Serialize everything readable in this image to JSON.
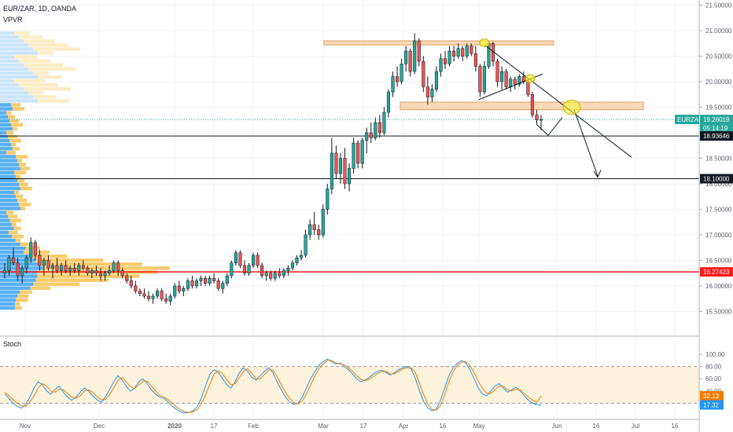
{
  "header": {
    "symbol_line": "EUR/ZAR, 1D, OANDA",
    "indicator_label": "VPVR",
    "stoch_label": "Stoch"
  },
  "colors": {
    "up": "#26a69a",
    "down": "#ef5350",
    "upBright": "#2196f3",
    "vpUp": "#2196f3",
    "vpDown": "#f6b93b",
    "vpUpLight": "#bbdefb",
    "vpDownLight": "#fde9b8",
    "zone": "#f9d9b8",
    "zoneStroke": "#e0a060",
    "support": "#131722",
    "redLine": "#ff1a1a",
    "stochK": "#2196f3",
    "stochD": "#f57c00",
    "stochBand": "#fdf3dc",
    "circleFill": "#f4f43c",
    "currentTag": "#26a69a"
  },
  "chart_data": [
    {
      "type": "candlestick",
      "title": "EUR/ZAR, 1D, OANDA",
      "y_ticks": [
        "21.50000",
        "21.00000",
        "20.50000",
        "20.00000",
        "19.50000",
        "19.00000",
        "18.50000",
        "18.00000",
        "17.50000",
        "17.00000",
        "16.50000",
        "16.00000",
        "15.50000"
      ],
      "ylim": [
        15.25,
        21.75
      ],
      "x_ticks": [
        "Nov",
        "Dec",
        "2020",
        "17",
        "Feb",
        "Mar",
        "17",
        "Apr",
        "16",
        "May",
        "Jun",
        "16",
        "Jul",
        "16"
      ],
      "price_labels": [
        {
          "label": "EURZAR",
          "value": "19.26019"
        },
        {
          "label": "",
          "value": "05:14:19"
        },
        {
          "label": "",
          "value": "18.93646"
        },
        {
          "label": "",
          "value": "18.10000"
        },
        {
          "label": "",
          "value": "16.27423"
        }
      ],
      "levels": [
        18.93646,
        18.1,
        16.27423
      ],
      "last_price": 19.26019,
      "supply_zone": [
        20.72,
        20.8
      ],
      "demand_zone": [
        19.45,
        19.6
      ],
      "candles": [
        [
          16.25,
          16.45,
          16.15,
          16.3
        ],
        [
          16.3,
          16.6,
          16.2,
          16.55
        ],
        [
          16.55,
          16.75,
          16.4,
          16.45
        ],
        [
          16.45,
          16.55,
          16.1,
          16.2
        ],
        [
          16.2,
          16.4,
          16.05,
          16.35
        ],
        [
          16.35,
          16.6,
          16.25,
          16.55
        ],
        [
          16.55,
          16.95,
          16.45,
          16.85
        ],
        [
          16.85,
          16.9,
          16.5,
          16.6
        ],
        [
          16.6,
          16.7,
          16.3,
          16.4
        ],
        [
          16.4,
          16.55,
          16.2,
          16.5
        ],
        [
          16.5,
          16.6,
          16.3,
          16.35
        ],
        [
          16.35,
          16.45,
          16.15,
          16.4
        ],
        [
          16.4,
          16.55,
          16.25,
          16.3
        ],
        [
          16.3,
          16.45,
          16.2,
          16.4
        ],
        [
          16.4,
          16.5,
          16.25,
          16.3
        ],
        [
          16.3,
          16.4,
          16.2,
          16.35
        ],
        [
          16.35,
          16.45,
          16.25,
          16.3
        ],
        [
          16.3,
          16.45,
          16.2,
          16.4
        ],
        [
          16.4,
          16.5,
          16.3,
          16.35
        ],
        [
          16.35,
          16.4,
          16.2,
          16.25
        ],
        [
          16.25,
          16.35,
          16.15,
          16.3
        ],
        [
          16.3,
          16.4,
          16.2,
          16.25
        ],
        [
          16.25,
          16.35,
          16.1,
          16.2
        ],
        [
          16.2,
          16.3,
          16.1,
          16.25
        ],
        [
          16.25,
          16.4,
          16.2,
          16.3
        ],
        [
          16.3,
          16.5,
          16.25,
          16.45
        ],
        [
          16.45,
          16.5,
          16.2,
          16.3
        ],
        [
          16.3,
          16.35,
          16.15,
          16.2
        ],
        [
          16.2,
          16.25,
          16.05,
          16.1
        ],
        [
          16.1,
          16.2,
          15.95,
          16.0
        ],
        [
          16.0,
          16.1,
          15.85,
          15.9
        ],
        [
          15.9,
          15.95,
          15.8,
          15.85
        ],
        [
          15.85,
          15.95,
          15.75,
          15.8
        ],
        [
          15.8,
          15.9,
          15.7,
          15.75
        ],
        [
          15.75,
          15.85,
          15.65,
          15.8
        ],
        [
          15.8,
          15.95,
          15.75,
          15.9
        ],
        [
          15.9,
          15.95,
          15.7,
          15.75
        ],
        [
          15.75,
          15.85,
          15.65,
          15.7
        ],
        [
          15.7,
          15.85,
          15.62,
          15.8
        ],
        [
          15.8,
          16.05,
          15.75,
          16.0
        ],
        [
          16.0,
          16.1,
          15.85,
          15.9
        ],
        [
          15.9,
          16.0,
          15.8,
          15.95
        ],
        [
          15.95,
          16.15,
          15.9,
          16.1
        ],
        [
          16.1,
          16.2,
          15.95,
          16.0
        ],
        [
          16.0,
          16.15,
          15.95,
          16.1
        ],
        [
          16.1,
          16.2,
          16.0,
          16.15
        ],
        [
          16.15,
          16.2,
          16.0,
          16.05
        ],
        [
          16.05,
          16.2,
          16.0,
          16.15
        ],
        [
          16.15,
          16.25,
          16.05,
          16.1
        ],
        [
          16.1,
          16.15,
          15.9,
          15.95
        ],
        [
          15.95,
          16.1,
          15.85,
          16.05
        ],
        [
          16.05,
          16.25,
          16.0,
          16.2
        ],
        [
          16.2,
          16.5,
          16.15,
          16.45
        ],
        [
          16.45,
          16.7,
          16.4,
          16.65
        ],
        [
          16.65,
          16.7,
          16.35,
          16.4
        ],
        [
          16.4,
          16.5,
          16.2,
          16.25
        ],
        [
          16.25,
          16.45,
          16.2,
          16.4
        ],
        [
          16.4,
          16.65,
          16.35,
          16.6
        ],
        [
          16.6,
          16.65,
          16.35,
          16.4
        ],
        [
          16.4,
          16.45,
          16.15,
          16.2
        ],
        [
          16.2,
          16.3,
          16.1,
          16.25
        ],
        [
          16.25,
          16.3,
          16.1,
          16.15
        ],
        [
          16.15,
          16.3,
          16.1,
          16.25
        ],
        [
          16.25,
          16.35,
          16.15,
          16.2
        ],
        [
          16.2,
          16.35,
          16.15,
          16.3
        ],
        [
          16.3,
          16.4,
          16.2,
          16.35
        ],
        [
          16.35,
          16.5,
          16.3,
          16.45
        ],
        [
          16.45,
          16.6,
          16.4,
          16.55
        ],
        [
          16.55,
          16.7,
          16.5,
          16.6
        ],
        [
          16.6,
          17.1,
          16.55,
          17.0
        ],
        [
          17.0,
          17.3,
          16.9,
          17.2
        ],
        [
          17.2,
          17.45,
          17.0,
          17.1
        ],
        [
          17.1,
          17.2,
          16.9,
          17.0
        ],
        [
          17.0,
          17.6,
          16.95,
          17.5
        ],
        [
          17.5,
          18.0,
          17.4,
          17.9
        ],
        [
          17.9,
          18.9,
          17.8,
          18.6
        ],
        [
          18.6,
          18.75,
          18.1,
          18.2
        ],
        [
          18.2,
          18.6,
          18.0,
          18.5
        ],
        [
          18.5,
          18.7,
          17.9,
          18.0
        ],
        [
          18.0,
          18.4,
          17.85,
          18.3
        ],
        [
          18.3,
          18.9,
          18.2,
          18.8
        ],
        [
          18.8,
          18.85,
          18.3,
          18.4
        ],
        [
          18.4,
          18.9,
          18.3,
          18.85
        ],
        [
          18.85,
          19.1,
          18.6,
          19.0
        ],
        [
          19.0,
          19.2,
          18.8,
          18.9
        ],
        [
          18.9,
          19.3,
          18.85,
          19.2
        ],
        [
          19.2,
          19.35,
          18.9,
          19.0
        ],
        [
          19.0,
          19.5,
          18.95,
          19.4
        ],
        [
          19.4,
          19.85,
          19.3,
          19.8
        ],
        [
          19.8,
          20.2,
          19.7,
          20.1
        ],
        [
          20.1,
          20.3,
          19.9,
          20.0
        ],
        [
          20.0,
          20.45,
          19.95,
          20.35
        ],
        [
          20.35,
          20.7,
          20.2,
          20.6
        ],
        [
          20.6,
          20.65,
          20.1,
          20.2
        ],
        [
          20.2,
          20.95,
          20.15,
          20.8
        ],
        [
          20.8,
          20.85,
          20.3,
          20.4
        ],
        [
          20.4,
          20.5,
          19.8,
          19.9
        ],
        [
          19.9,
          20.1,
          19.55,
          19.7
        ],
        [
          19.7,
          19.95,
          19.6,
          19.85
        ],
        [
          19.85,
          20.3,
          19.8,
          20.2
        ],
        [
          20.2,
          20.55,
          20.1,
          20.45
        ],
        [
          20.45,
          20.6,
          20.25,
          20.35
        ],
        [
          20.35,
          20.7,
          20.3,
          20.6
        ],
        [
          20.6,
          20.7,
          20.4,
          20.5
        ],
        [
          20.5,
          20.75,
          20.45,
          20.65
        ],
        [
          20.65,
          20.7,
          20.4,
          20.5
        ],
        [
          20.5,
          20.75,
          20.45,
          20.7
        ],
        [
          20.7,
          20.75,
          20.5,
          20.55
        ],
        [
          20.55,
          20.7,
          20.2,
          20.3
        ],
        [
          20.3,
          20.35,
          19.7,
          19.8
        ],
        [
          19.8,
          20.4,
          19.75,
          20.3
        ],
        [
          20.3,
          20.8,
          20.25,
          20.75
        ],
        [
          20.75,
          20.78,
          20.3,
          20.4
        ],
        [
          20.4,
          20.45,
          19.9,
          20.0
        ],
        [
          20.0,
          20.3,
          19.85,
          20.2
        ],
        [
          20.2,
          20.25,
          19.85,
          19.9
        ],
        [
          19.9,
          20.1,
          19.8,
          20.05
        ],
        [
          20.05,
          20.1,
          19.85,
          19.95
        ],
        [
          19.95,
          20.15,
          19.9,
          20.1
        ],
        [
          20.1,
          20.2,
          19.95,
          20.0
        ],
        [
          20.0,
          20.05,
          19.7,
          19.75
        ],
        [
          19.75,
          19.8,
          19.3,
          19.35
        ],
        [
          19.35,
          19.45,
          19.15,
          19.25
        ],
        [
          19.25,
          19.35,
          19.05,
          19.26
        ]
      ]
    },
    {
      "type": "line",
      "title": "Stoch",
      "y_ticks": [
        "100.00",
        "80.00",
        "60.00",
        "40.00",
        "20.00"
      ],
      "ylim": [
        0,
        100
      ],
      "band": [
        20,
        80
      ],
      "last_values": {
        "d": "32.13",
        "k": "17.32"
      },
      "series": [
        {
          "id": "k",
          "values": [
            35,
            28,
            20,
            15,
            12,
            18,
            30,
            45,
            55,
            50,
            40,
            35,
            42,
            48,
            38,
            30,
            25,
            30,
            38,
            45,
            40,
            32,
            26,
            22,
            30,
            42,
            55,
            65,
            58,
            48,
            40,
            45,
            55,
            60,
            52,
            42,
            35,
            30,
            28,
            22,
            15,
            10,
            6,
            4,
            5,
            8,
            15,
            30,
            50,
            68,
            75,
            70,
            60,
            50,
            45,
            55,
            70,
            78,
            72,
            62,
            58,
            65,
            72,
            78,
            70,
            55,
            42,
            30,
            22,
            18,
            20,
            30,
            45,
            60,
            72,
            82,
            88,
            92,
            88,
            84,
            86,
            80,
            75,
            68,
            60,
            55,
            58,
            62,
            68,
            72,
            74,
            70,
            66,
            70,
            75,
            78,
            80,
            76,
            60,
            40,
            22,
            12,
            8,
            10,
            25,
            45,
            65,
            78,
            85,
            90,
            86,
            75,
            60,
            45,
            35,
            32,
            40,
            48,
            52,
            45,
            38,
            42,
            46,
            40,
            32,
            25,
            20,
            18,
            17
          ]
        },
        {
          "id": "d",
          "values": [
            38,
            32,
            26,
            20,
            16,
            15,
            22,
            32,
            45,
            52,
            48,
            40,
            38,
            43,
            42,
            36,
            30,
            28,
            32,
            40,
            42,
            38,
            31,
            26,
            26,
            34,
            45,
            57,
            62,
            55,
            47,
            44,
            50,
            56,
            56,
            48,
            40,
            33,
            30,
            26,
            20,
            14,
            9,
            6,
            5,
            6,
            10,
            20,
            35,
            52,
            68,
            73,
            68,
            58,
            50,
            52,
            62,
            72,
            76,
            68,
            60,
            60,
            67,
            74,
            74,
            64,
            50,
            38,
            28,
            21,
            19,
            24,
            35,
            50,
            64,
            76,
            84,
            90,
            90,
            86,
            84,
            83,
            78,
            72,
            65,
            59,
            57,
            59,
            64,
            69,
            72,
            72,
            68,
            68,
            72,
            76,
            78,
            78,
            70,
            52,
            34,
            18,
            10,
            9,
            16,
            34,
            55,
            71,
            82,
            87,
            88,
            82,
            70,
            56,
            44,
            36,
            36,
            42,
            48,
            48,
            42,
            40,
            43,
            42,
            36,
            30,
            25,
            22,
            32
          ]
        }
      ]
    }
  ]
}
